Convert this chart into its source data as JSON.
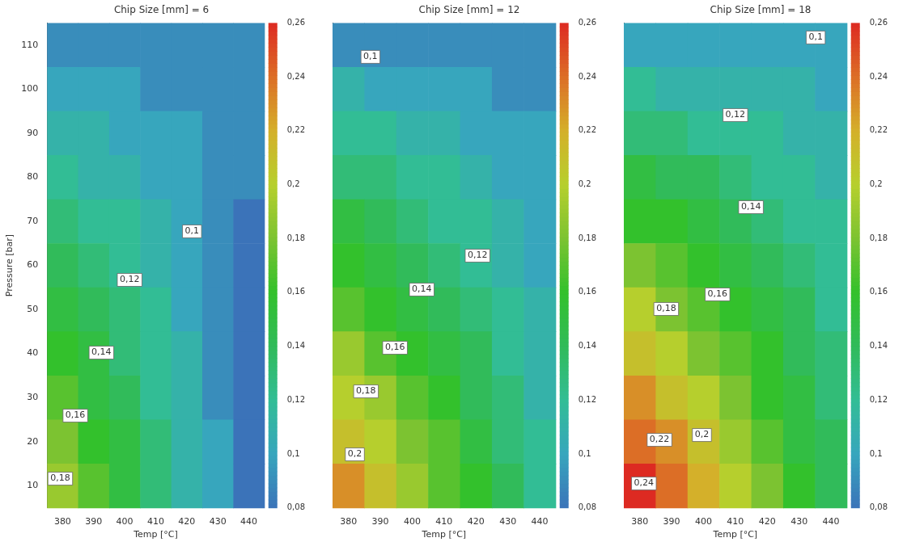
{
  "chart_data": [
    {
      "type": "heatmap",
      "title": "Chip Size [mm] = 6",
      "xlabel": "Temp [°C]",
      "ylabel": "Pressure [bar]",
      "categories": [
        "380",
        "390",
        "400",
        "410",
        "420",
        "430",
        "440"
      ],
      "y_categories": [
        "110",
        "100",
        "90",
        "80",
        "70",
        "60",
        "50",
        "40",
        "30",
        "20",
        "10"
      ],
      "cells": [
        [
          0.09,
          0.09,
          0.09,
          0.09,
          0.09,
          0.09,
          0.09
        ],
        [
          0.1,
          0.1,
          0.1,
          0.09,
          0.09,
          0.09,
          0.09
        ],
        [
          0.11,
          0.11,
          0.1,
          0.1,
          0.1,
          0.09,
          0.09
        ],
        [
          0.12,
          0.11,
          0.11,
          0.1,
          0.1,
          0.09,
          0.09
        ],
        [
          0.13,
          0.12,
          0.12,
          0.11,
          0.1,
          0.09,
          0.08
        ],
        [
          0.14,
          0.13,
          0.12,
          0.11,
          0.1,
          0.09,
          0.08
        ],
        [
          0.15,
          0.14,
          0.13,
          0.12,
          0.1,
          0.09,
          0.08
        ],
        [
          0.16,
          0.15,
          0.13,
          0.12,
          0.11,
          0.09,
          0.08
        ],
        [
          0.17,
          0.15,
          0.14,
          0.12,
          0.11,
          0.09,
          0.08
        ],
        [
          0.18,
          0.16,
          0.15,
          0.13,
          0.11,
          0.1,
          0.08
        ],
        [
          0.19,
          0.17,
          0.15,
          0.13,
          0.11,
          0.1,
          0.08
        ]
      ],
      "clim": [
        0.08,
        0.26
      ],
      "cticks": [
        {
          "value": 0.08,
          "label": "0,08"
        },
        {
          "value": 0.1,
          "label": "0,1"
        },
        {
          "value": 0.12,
          "label": "0,12"
        },
        {
          "value": 0.14,
          "label": "0,14"
        },
        {
          "value": 0.16,
          "label": "0,16"
        },
        {
          "value": 0.18,
          "label": "0,18"
        },
        {
          "value": 0.2,
          "label": "0,2"
        },
        {
          "value": 0.22,
          "label": "0,22"
        },
        {
          "value": 0.24,
          "label": "0,24"
        },
        {
          "value": 0.26,
          "label": "0,26"
        }
      ],
      "annotations": [
        "0,1",
        "0,12",
        "0,14",
        "0,16",
        "0,18"
      ]
    },
    {
      "type": "heatmap",
      "title": "Chip Size [mm] = 12",
      "xlabel": "Temp [°C]",
      "categories": [
        "380",
        "390",
        "400",
        "410",
        "420",
        "430",
        "440"
      ],
      "y_categories": [
        "110",
        "100",
        "90",
        "80",
        "70",
        "60",
        "50",
        "40",
        "30",
        "20",
        "10"
      ],
      "cells": [
        [
          0.09,
          0.09,
          0.09,
          0.09,
          0.09,
          0.09,
          0.09
        ],
        [
          0.11,
          0.1,
          0.1,
          0.1,
          0.1,
          0.09,
          0.09
        ],
        [
          0.12,
          0.12,
          0.11,
          0.11,
          0.1,
          0.1,
          0.1
        ],
        [
          0.13,
          0.13,
          0.12,
          0.12,
          0.11,
          0.1,
          0.1
        ],
        [
          0.15,
          0.14,
          0.13,
          0.12,
          0.12,
          0.11,
          0.1
        ],
        [
          0.16,
          0.15,
          0.14,
          0.13,
          0.12,
          0.11,
          0.1
        ],
        [
          0.17,
          0.16,
          0.15,
          0.14,
          0.13,
          0.12,
          0.11
        ],
        [
          0.19,
          0.17,
          0.16,
          0.15,
          0.14,
          0.12,
          0.11
        ],
        [
          0.2,
          0.19,
          0.17,
          0.16,
          0.14,
          0.13,
          0.11
        ],
        [
          0.21,
          0.2,
          0.18,
          0.17,
          0.15,
          0.13,
          0.12
        ],
        [
          0.23,
          0.21,
          0.19,
          0.17,
          0.16,
          0.14,
          0.12
        ]
      ],
      "clim": [
        0.08,
        0.26
      ],
      "tick_labels": "x",
      "cticks": [
        {
          "value": 0.08,
          "label": "0,08"
        },
        {
          "value": 0.1,
          "label": "0,1"
        },
        {
          "value": 0.12,
          "label": "0,12"
        },
        {
          "value": 0.14,
          "label": "0,14"
        },
        {
          "value": 0.16,
          "label": "0,16"
        },
        {
          "value": 0.18,
          "label": "0,18"
        },
        {
          "value": 0.2,
          "label": "0,2"
        },
        {
          "value": 0.22,
          "label": "0,22"
        },
        {
          "value": 0.24,
          "label": "0,24"
        },
        {
          "value": 0.26,
          "label": "0,26"
        }
      ],
      "annotations": [
        "0,1",
        "0,12",
        "0,14",
        "0,16",
        "0,18",
        "0,2"
      ]
    },
    {
      "type": "heatmap",
      "title": "Chip Size [mm] = 18",
      "xlabel": "Temp [°C]",
      "categories": [
        "380",
        "390",
        "400",
        "410",
        "420",
        "430",
        "440"
      ],
      "y_categories": [
        "110",
        "100",
        "90",
        "80",
        "70",
        "60",
        "50",
        "40",
        "30",
        "20",
        "10"
      ],
      "cells": [
        [
          0.1,
          0.1,
          0.1,
          0.1,
          0.1,
          0.1,
          0.1
        ],
        [
          0.12,
          0.11,
          0.11,
          0.11,
          0.11,
          0.11,
          0.1
        ],
        [
          0.13,
          0.13,
          0.12,
          0.12,
          0.12,
          0.11,
          0.11
        ],
        [
          0.15,
          0.14,
          0.14,
          0.13,
          0.12,
          0.12,
          0.11
        ],
        [
          0.16,
          0.16,
          0.15,
          0.14,
          0.13,
          0.12,
          0.12
        ],
        [
          0.18,
          0.17,
          0.16,
          0.15,
          0.14,
          0.13,
          0.12
        ],
        [
          0.2,
          0.18,
          0.17,
          0.16,
          0.15,
          0.14,
          0.12
        ],
        [
          0.21,
          0.2,
          0.18,
          0.17,
          0.16,
          0.14,
          0.13
        ],
        [
          0.23,
          0.21,
          0.2,
          0.18,
          0.16,
          0.15,
          0.13
        ],
        [
          0.24,
          0.23,
          0.21,
          0.19,
          0.17,
          0.15,
          0.14
        ],
        [
          0.26,
          0.24,
          0.22,
          0.2,
          0.18,
          0.16,
          0.14
        ]
      ],
      "clim": [
        0.08,
        0.26
      ],
      "tick_labels": "x",
      "cticks": [
        {
          "value": 0.08,
          "label": "0,08"
        },
        {
          "value": 0.1,
          "label": "0,1"
        },
        {
          "value": 0.12,
          "label": "0,12"
        },
        {
          "value": 0.14,
          "label": "0,14"
        },
        {
          "value": 0.16,
          "label": "0,16"
        },
        {
          "value": 0.18,
          "label": "0,18"
        },
        {
          "value": 0.2,
          "label": "0,2"
        },
        {
          "value": 0.22,
          "label": "0,22"
        },
        {
          "value": 0.24,
          "label": "0,24"
        },
        {
          "value": 0.26,
          "label": "0,26"
        }
      ],
      "annotations": [
        "0,1",
        "0,12",
        "0,14",
        "0,16",
        "0,18",
        "0,2",
        "0,22",
        "0,24"
      ]
    }
  ]
}
